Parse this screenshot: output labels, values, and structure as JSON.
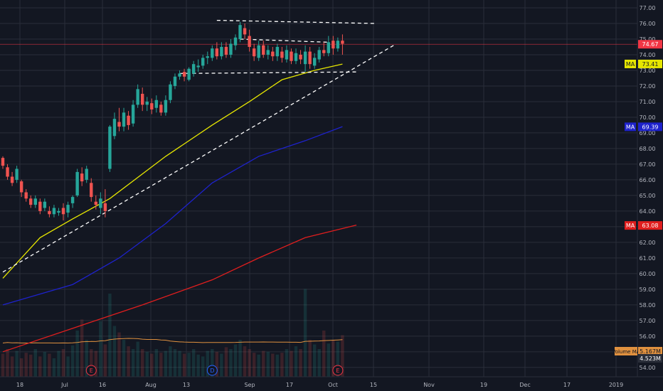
{
  "chart_data": {
    "type": "candlestick",
    "grid": true,
    "y_axis": {
      "range": [
        53.4,
        77.5
      ],
      "ticks": [
        54,
        55,
        56,
        57,
        58,
        59,
        60,
        61,
        62,
        63,
        64,
        65,
        66,
        67,
        68,
        69,
        70,
        71,
        72,
        73,
        74,
        75,
        76,
        77
      ],
      "tick_labels": [
        "54.00",
        "55.00",
        "56.00",
        "57.00",
        "58.00",
        "59.00",
        "60.00",
        "61.00",
        "62.00",
        "63.00",
        "64.00",
        "65.00",
        "66.00",
        "67.00",
        "68.00",
        "69.00",
        "70.00",
        "71.00",
        "72.00",
        "73.00",
        "74.00",
        "75.00",
        "76.00",
        "77.00"
      ]
    },
    "x_axis": {
      "tick_labels": [
        "18",
        "Jul",
        "16",
        "Aug",
        "13",
        "Sep",
        "17",
        "Oct",
        "15",
        "Nov",
        "19",
        "Dec",
        "17",
        "2019"
      ]
    },
    "candles": [
      [
        67.4,
        66.9,
        67.5,
        66.7
      ],
      [
        66.8,
        66.2,
        67.0,
        66.0
      ],
      [
        66.2,
        65.8,
        66.5,
        65.6
      ],
      [
        66.0,
        66.7,
        66.9,
        65.8
      ],
      [
        65.9,
        65.2,
        66.0,
        64.9
      ],
      [
        65.2,
        64.8,
        65.4,
        64.6
      ],
      [
        64.8,
        64.4,
        65.0,
        64.2
      ],
      [
        64.4,
        64.8,
        65.0,
        64.2
      ],
      [
        64.6,
        64.0,
        64.8,
        63.8
      ],
      [
        64.2,
        64.6,
        64.8,
        64.0
      ],
      [
        64.0,
        63.8,
        64.3,
        63.6
      ],
      [
        63.8,
        64.2,
        64.4,
        63.6
      ],
      [
        63.9,
        64.0,
        64.2,
        63.7
      ],
      [
        64.2,
        63.8,
        64.5,
        63.4
      ],
      [
        63.9,
        64.4,
        64.6,
        63.6
      ],
      [
        64.5,
        64.9,
        65.0,
        64.2
      ],
      [
        65.0,
        66.5,
        66.7,
        64.9
      ],
      [
        66.4,
        65.9,
        66.8,
        65.6
      ],
      [
        66.0,
        66.7,
        66.9,
        65.8
      ],
      [
        65.8,
        64.9,
        66.1,
        64.6
      ],
      [
        64.6,
        64.4,
        65.0,
        64.1
      ],
      [
        64.2,
        64.8,
        65.2,
        63.8
      ],
      [
        64.5,
        64.0,
        65.4,
        63.6
      ],
      [
        66.7,
        69.4,
        69.5,
        66.5
      ],
      [
        68.8,
        69.9,
        70.3,
        68.6
      ],
      [
        69.7,
        69.4,
        70.6,
        69.1
      ],
      [
        69.4,
        70.3,
        70.6,
        69.1
      ],
      [
        70.1,
        69.5,
        70.4,
        69.2
      ],
      [
        69.6,
        70.8,
        71.1,
        69.4
      ],
      [
        70.8,
        71.8,
        72.1,
        70.6
      ],
      [
        71.5,
        70.8,
        71.9,
        70.4
      ],
      [
        70.8,
        71.0,
        71.3,
        70.4
      ],
      [
        70.9,
        70.5,
        71.2,
        70.2
      ],
      [
        70.6,
        71.1,
        71.4,
        70.3
      ],
      [
        70.8,
        70.3,
        71.0,
        70.1
      ],
      [
        70.3,
        71.1,
        71.4,
        70.1
      ],
      [
        71.1,
        72.1,
        72.3,
        70.9
      ],
      [
        72.0,
        72.6,
        72.8,
        71.8
      ],
      [
        72.6,
        72.8,
        73.0,
        72.4
      ],
      [
        72.9,
        72.6,
        73.1,
        72.3
      ],
      [
        72.4,
        73.1,
        73.2,
        72.3
      ],
      [
        72.8,
        73.4,
        73.6,
        72.6
      ],
      [
        73.2,
        73.3,
        73.7,
        72.9
      ],
      [
        73.3,
        73.8,
        74.0,
        73.1
      ],
      [
        73.8,
        73.9,
        74.2,
        73.4
      ],
      [
        73.8,
        74.4,
        74.6,
        73.6
      ],
      [
        74.4,
        73.9,
        74.8,
        73.7
      ],
      [
        73.9,
        74.5,
        74.8,
        73.7
      ],
      [
        74.5,
        74.0,
        74.8,
        73.8
      ],
      [
        74.0,
        74.7,
        75.0,
        73.8
      ],
      [
        74.6,
        75.1,
        75.3,
        74.3
      ],
      [
        75.0,
        75.9,
        76.1,
        74.8
      ],
      [
        75.7,
        75.3,
        76.0,
        75.0
      ],
      [
        75.2,
        74.5,
        75.6,
        74.2
      ],
      [
        74.4,
        73.9,
        74.7,
        73.6
      ],
      [
        73.8,
        74.6,
        74.9,
        73.6
      ],
      [
        74.6,
        74.0,
        74.9,
        73.8
      ],
      [
        74.0,
        74.3,
        74.6,
        73.7
      ],
      [
        74.2,
        73.9,
        74.5,
        73.6
      ],
      [
        73.9,
        74.5,
        74.7,
        73.6
      ],
      [
        74.2,
        73.8,
        74.5,
        73.5
      ],
      [
        73.7,
        74.3,
        74.6,
        73.5
      ],
      [
        74.2,
        73.6,
        74.4,
        73.4
      ],
      [
        73.6,
        74.1,
        74.4,
        73.4
      ],
      [
        74.0,
        73.7,
        74.3,
        73.4
      ],
      [
        73.4,
        74.2,
        74.6,
        72.9
      ],
      [
        74.2,
        73.4,
        74.5,
        73.1
      ],
      [
        73.3,
        73.8,
        74.1,
        73.1
      ],
      [
        73.7,
        74.3,
        74.5,
        73.5
      ],
      [
        74.3,
        74.1,
        74.8,
        73.9
      ],
      [
        74.1,
        74.8,
        75.2,
        73.9
      ],
      [
        74.9,
        74.4,
        75.2,
        74.0
      ],
      [
        74.4,
        74.9,
        75.1,
        74.2
      ],
      [
        74.9,
        74.7,
        75.3,
        74.0
      ]
    ],
    "moving_averages": [
      {
        "label": "MA",
        "value": 73.41,
        "color": "#e6e600",
        "points": [
          [
            0,
            59.7
          ],
          [
            8,
            62.3
          ],
          [
            15,
            63.5
          ],
          [
            23,
            64.8
          ],
          [
            35,
            67.5
          ],
          [
            45,
            69.5
          ],
          [
            53,
            71.0
          ],
          [
            60,
            72.4
          ],
          [
            67,
            73.0
          ],
          [
            73,
            73.4
          ]
        ]
      },
      {
        "label": "MA",
        "value": 69.39,
        "color": "#1e22cc",
        "points": [
          [
            0,
            58.0
          ],
          [
            15,
            59.3
          ],
          [
            25,
            61.0
          ],
          [
            35,
            63.2
          ],
          [
            45,
            65.8
          ],
          [
            55,
            67.5
          ],
          [
            65,
            68.5
          ],
          [
            73,
            69.4
          ]
        ]
      },
      {
        "label": "MA",
        "value": 63.08,
        "color": "#e01e1e",
        "points": [
          [
            0,
            55.0
          ],
          [
            15,
            56.5
          ],
          [
            30,
            58.0
          ],
          [
            45,
            59.6
          ],
          [
            55,
            61.0
          ],
          [
            65,
            62.3
          ],
          [
            76,
            63.1
          ]
        ]
      }
    ],
    "last_price": {
      "value": 74.67,
      "label": "74.67",
      "color": "#f23645"
    },
    "trendlines": [
      {
        "from": [
          0,
          60.1
        ],
        "to": [
          84,
          74.6
        ]
      },
      {
        "from": [
          46,
          76.2
        ],
        "to": [
          80,
          76.0
        ]
      },
      {
        "from": [
          51,
          75.0
        ],
        "to": [
          70,
          74.8
        ]
      },
      {
        "from": [
          38,
          72.8
        ],
        "to": [
          76,
          72.9
        ]
      }
    ],
    "volume": {
      "bars": [
        0.25,
        0.3,
        0.22,
        0.28,
        0.2,
        0.26,
        0.24,
        0.3,
        0.22,
        0.27,
        0.25,
        0.2,
        0.28,
        0.3,
        0.22,
        0.34,
        0.5,
        0.62,
        0.4,
        0.3,
        0.28,
        0.6,
        0.35,
        0.9,
        0.55,
        0.48,
        0.4,
        0.33,
        0.3,
        0.38,
        0.3,
        0.27,
        0.25,
        0.3,
        0.26,
        0.28,
        0.33,
        0.3,
        0.28,
        0.25,
        0.26,
        0.3,
        0.24,
        0.22,
        0.28,
        0.3,
        0.27,
        0.25,
        0.32,
        0.3,
        0.35,
        0.4,
        0.33,
        0.3,
        0.26,
        0.24,
        0.28,
        0.27,
        0.25,
        0.24,
        0.26,
        0.3,
        0.28,
        0.33,
        0.3,
        0.95,
        0.4,
        0.35,
        0.3,
        0.5,
        0.36,
        0.4,
        0.38,
        0.45
      ],
      "ma_label": "Volume MA",
      "ma_value": "5.167M",
      "value_label": "4.523M"
    },
    "events": [
      {
        "label": "E",
        "index": 19,
        "color": "#f23645"
      },
      {
        "label": "D",
        "index": 45,
        "color": "#2962ff"
      },
      {
        "label": "E",
        "index": 72,
        "color": "#f23645"
      }
    ]
  }
}
